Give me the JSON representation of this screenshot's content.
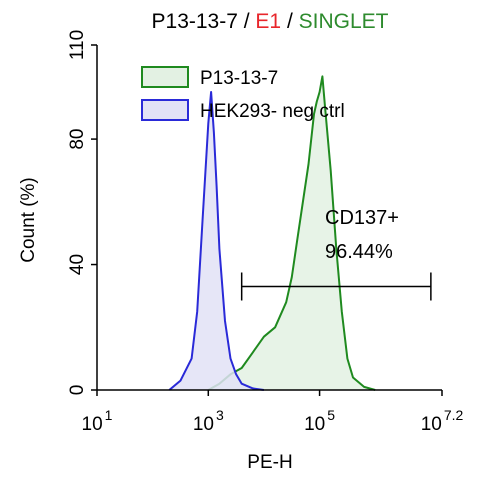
{
  "chart_data": {
    "type": "area",
    "title_parts": [
      {
        "text": "P13-13-7",
        "color": "#000000"
      },
      {
        "text": " / ",
        "color": "#000000"
      },
      {
        "text": "E1",
        "color": "#e8262b"
      },
      {
        "text": " / ",
        "color": "#000000"
      },
      {
        "text": "SINGLET",
        "color": "#2e8b2e"
      }
    ],
    "xlabel": "PE-H",
    "ylabel": "Count  (%)",
    "x_scale": "log",
    "xlim_exp": [
      1,
      7.2
    ],
    "ylim": [
      0,
      110
    ],
    "x_ticks": [
      {
        "base": "10",
        "exp": "1",
        "value_exp": 1
      },
      {
        "base": "10",
        "exp": "3",
        "value_exp": 3
      },
      {
        "base": "10",
        "exp": "5",
        "value_exp": 5
      },
      {
        "base": "10",
        "exp": "7.2",
        "value_exp": 7.2
      }
    ],
    "y_ticks": [
      0,
      40,
      80,
      110
    ],
    "legend_position": "top-left",
    "series": [
      {
        "name": "P13-13-7",
        "stroke": "#1f8a1f",
        "fill": "#e3f1e3",
        "x_exp": [
          3.0,
          3.2,
          3.4,
          3.6,
          3.8,
          4.0,
          4.2,
          4.4,
          4.5,
          4.6,
          4.7,
          4.8,
          4.9,
          4.95,
          5.0,
          5.05,
          5.1,
          5.2,
          5.3,
          5.4,
          5.5,
          5.6,
          5.8,
          6.0
        ],
        "y": [
          0,
          2,
          5,
          7,
          12,
          17,
          20,
          28,
          36,
          48,
          60,
          72,
          88,
          92,
          95,
          100,
          90,
          70,
          45,
          25,
          10,
          4,
          1,
          0
        ]
      },
      {
        "name": "HEK293- neg ctrl",
        "stroke": "#2a2ad8",
        "fill": "#e2e2f6",
        "x_exp": [
          2.3,
          2.5,
          2.7,
          2.8,
          2.9,
          3.0,
          3.05,
          3.1,
          3.15,
          3.2,
          3.3,
          3.4,
          3.5,
          3.6,
          3.8,
          4.0
        ],
        "y": [
          0,
          3,
          10,
          25,
          55,
          85,
          95,
          82,
          65,
          45,
          22,
          10,
          5,
          2,
          0.5,
          0
        ]
      }
    ],
    "gate": {
      "label": "CD137+",
      "value_label": "96.44%",
      "x_start_exp": 3.6,
      "x_end_exp": 7.0,
      "y": 33
    }
  }
}
